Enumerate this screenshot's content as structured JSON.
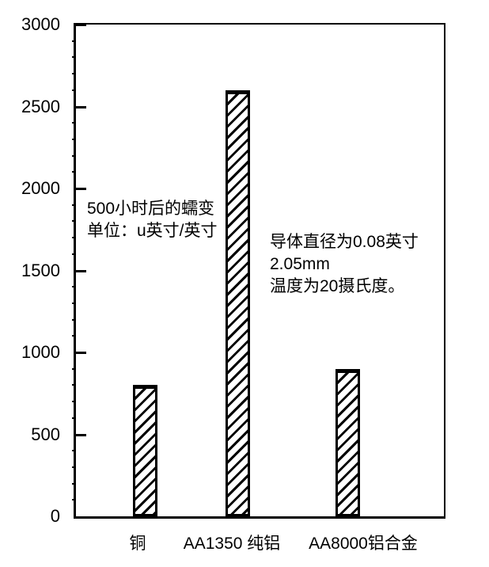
{
  "colors": {
    "ink": "#000000",
    "background": "#ffffff"
  },
  "chart_data": {
    "type": "bar",
    "title": "",
    "xlabel": "",
    "ylabel": "",
    "categories": [
      "铜",
      "AA1350 纯铝",
      "AA8000铝合金"
    ],
    "values": [
      800,
      2600,
      900
    ],
    "ylim": [
      0,
      3000
    ],
    "ytick_step": 500,
    "y_minor_step": 100,
    "yticks": [
      0,
      500,
      1000,
      1500,
      2000,
      2500,
      3000
    ],
    "grid": false,
    "legend": false,
    "bar_fill": "diagonal-hatch",
    "annotations": [
      {
        "lines": [
          "500小时后的蠕变",
          "单位：u英寸/英寸"
        ]
      },
      {
        "lines": [
          "导体直径为0.08英寸",
          "2.05mm",
          "温度为20摄氏度。"
        ]
      }
    ]
  }
}
